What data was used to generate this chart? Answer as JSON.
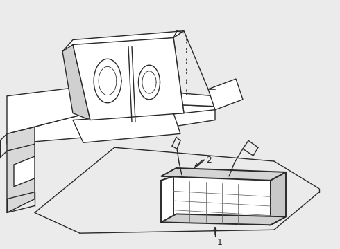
{
  "bg_color": "#ebebeb",
  "line_color": "#2a2a2a",
  "fig_bg": "#ebebeb",
  "lw": 1.0,
  "lw_thin": 0.6,
  "lw_thick": 1.4
}
